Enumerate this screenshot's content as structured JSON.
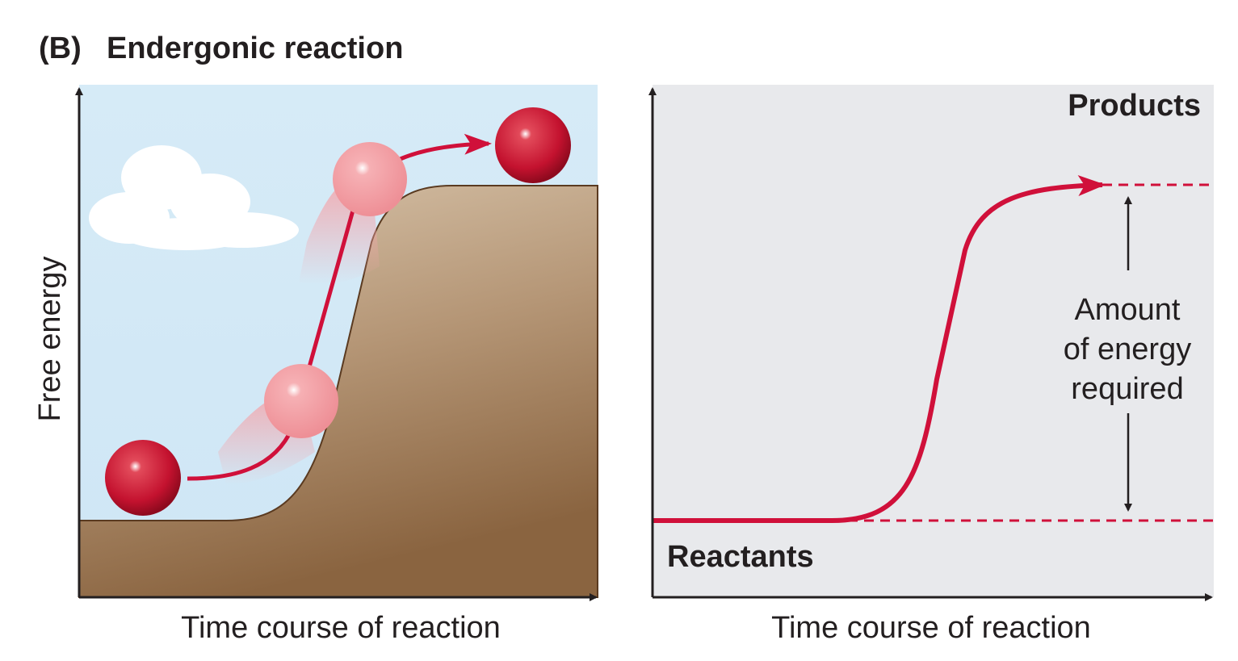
{
  "header": {
    "label": "(B)",
    "title": "Endergonic reaction"
  },
  "left_panel": {
    "y_label": "Free energy",
    "x_label": "Time course of reaction"
  },
  "right_panel": {
    "x_label": "Time course of reaction",
    "products": "Products",
    "reactants": "Reactants",
    "annotation": [
      "Amount",
      "of energy",
      "required"
    ]
  }
}
